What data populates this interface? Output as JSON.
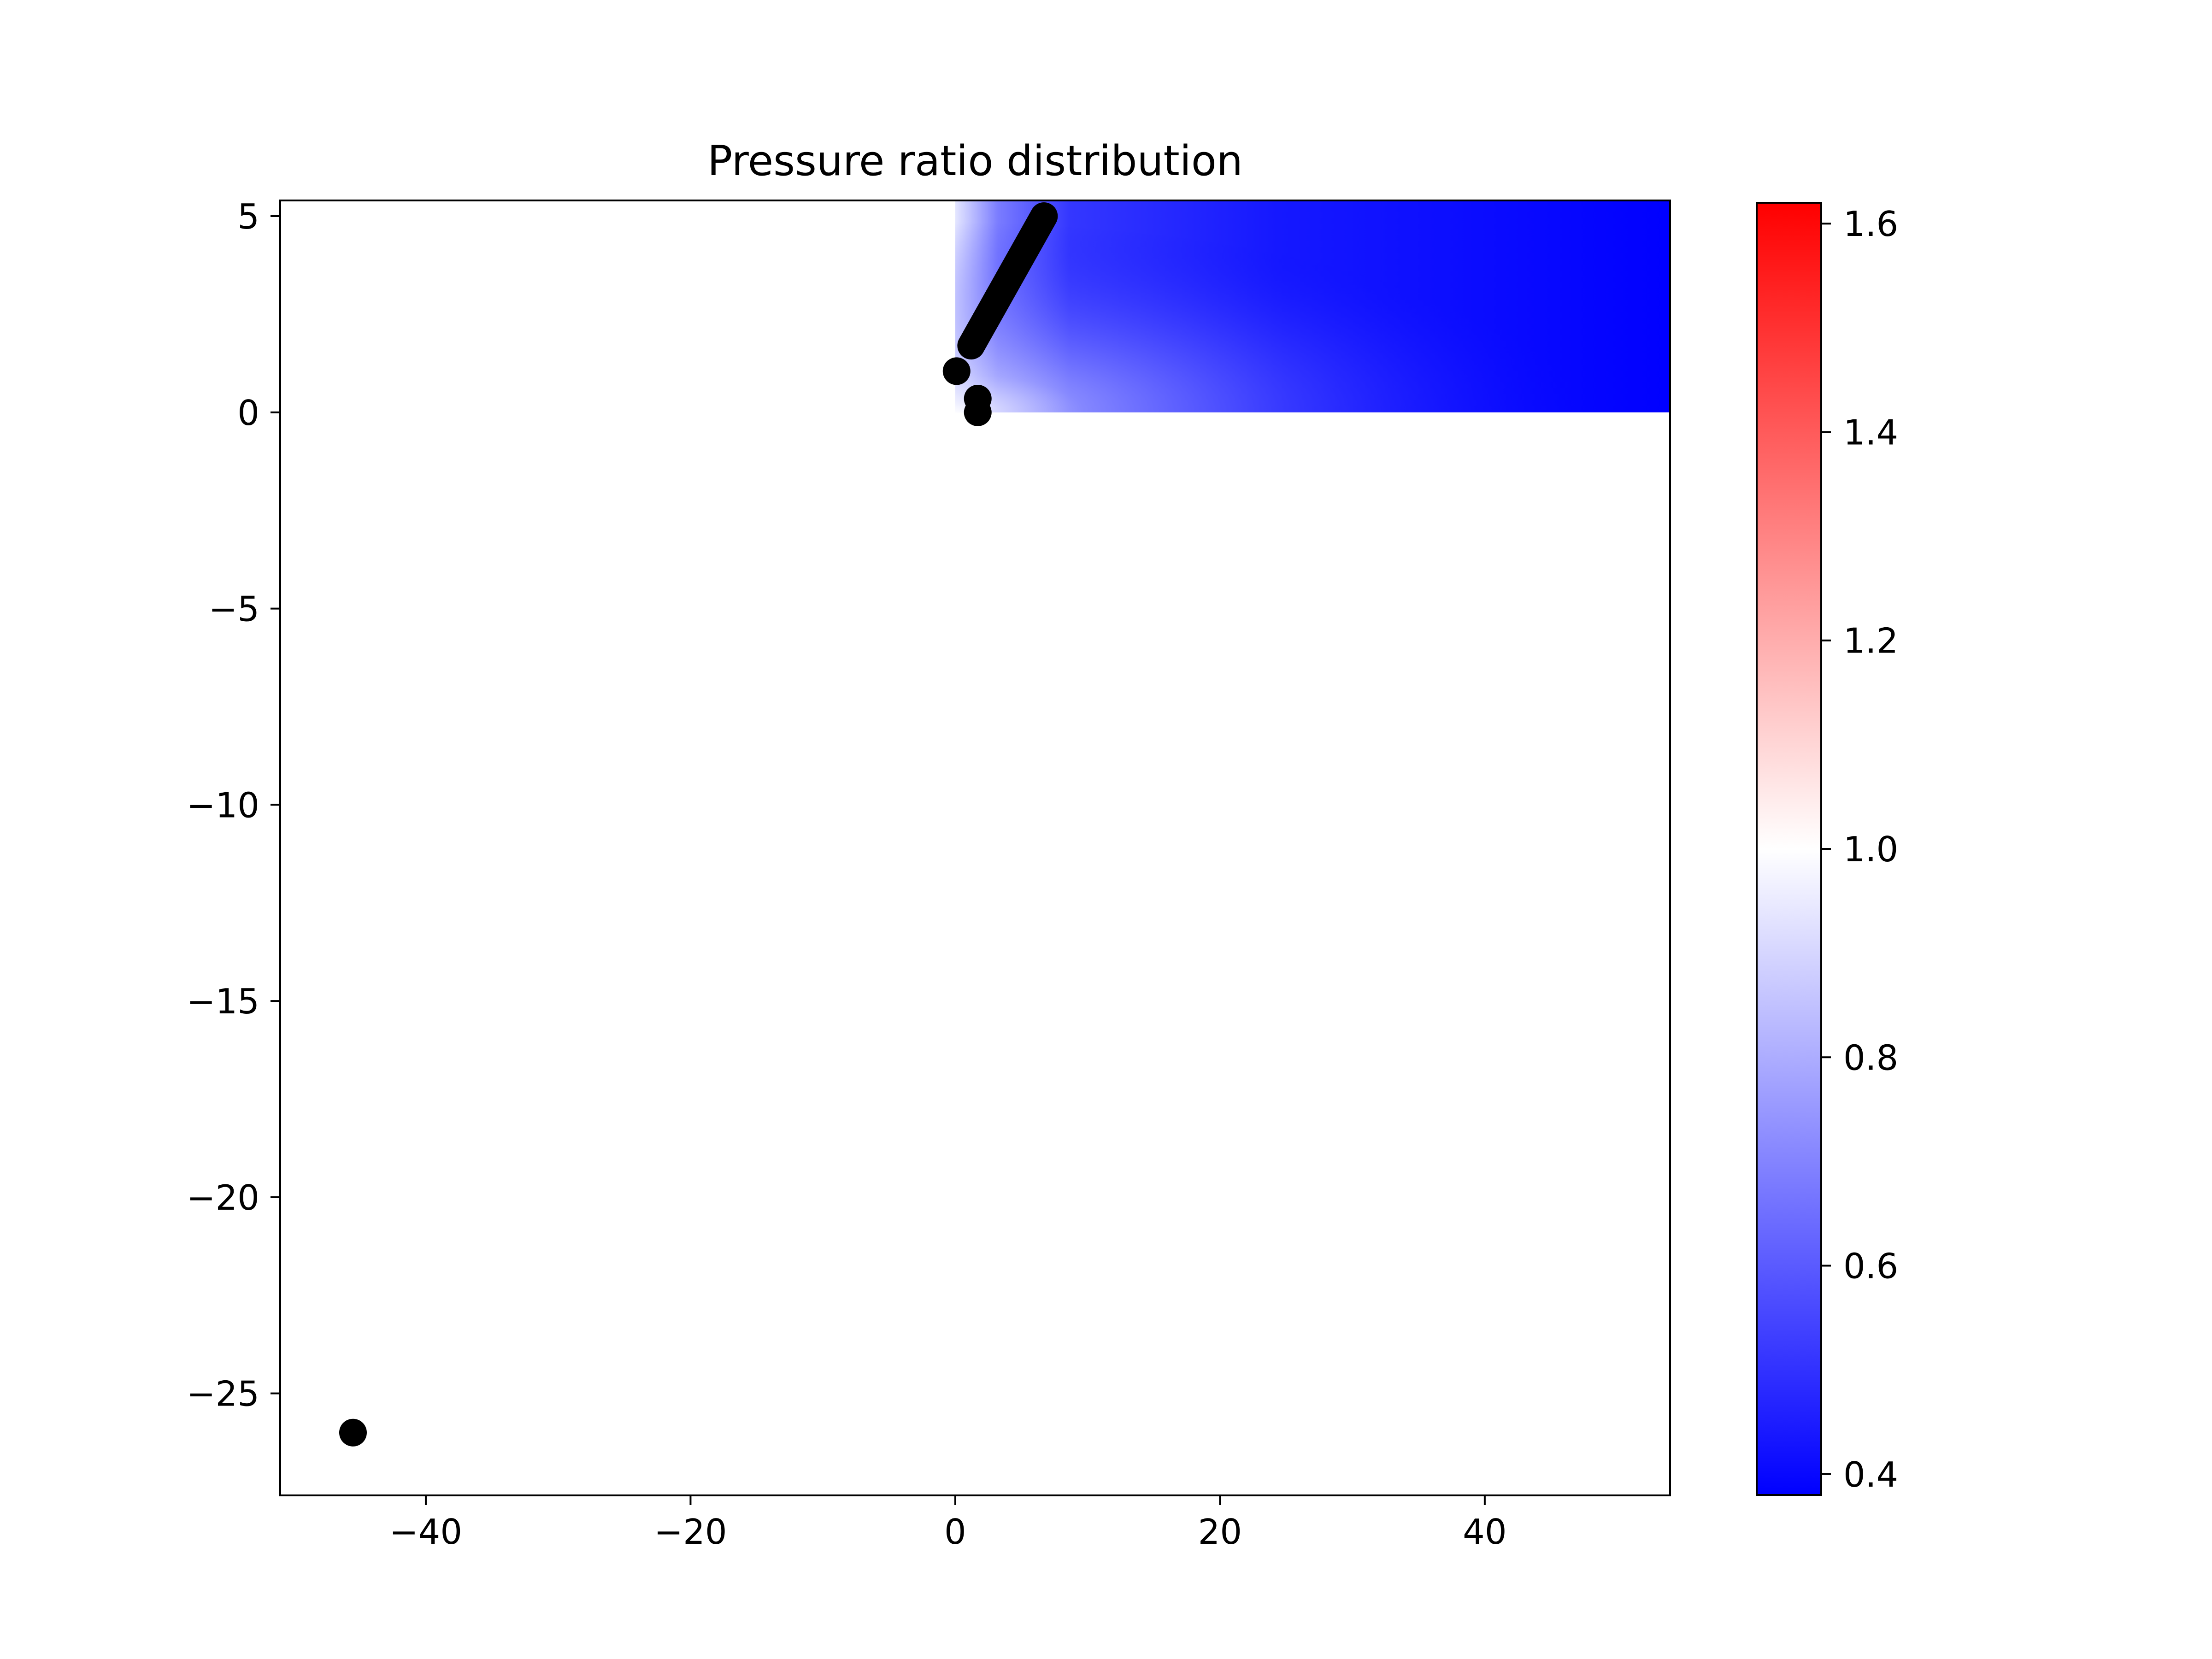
{
  "chart_data": {
    "type": "heatmap",
    "title": "Pressure ratio distribution",
    "xlabel": "",
    "ylabel": "",
    "xlim": [
      -51,
      54
    ],
    "ylim": [
      -27.6,
      5.4
    ],
    "grid": false,
    "xticks": [
      -40,
      -20,
      0,
      20,
      40
    ],
    "xtick_labels": [
      "−40",
      "−20",
      "0",
      "20",
      "40"
    ],
    "yticks": [
      5,
      0,
      -5,
      -10,
      -15,
      -20,
      -25
    ],
    "ytick_labels": [
      "5",
      "0",
      "−5",
      "−10",
      "−15",
      "−20",
      "−25"
    ],
    "field": {
      "description": "pressure ratio field",
      "x_range": [
        0,
        54
      ],
      "y_range": [
        0,
        5.4
      ],
      "value_near_origin": 1.0,
      "value_far_field": 0.4
    },
    "markers": {
      "color": "#000000",
      "points": [
        {
          "x": 0.1,
          "y": 1.05
        },
        {
          "x": 1.7,
          "y": 0.35
        },
        {
          "x": 1.7,
          "y": 0.0
        },
        {
          "x": -45.5,
          "y": -26.0
        }
      ],
      "line_segment": {
        "x": [
          1.2,
          6.7
        ],
        "y": [
          1.7,
          5.0
        ]
      }
    },
    "colorbar": {
      "range": [
        0.38,
        1.62
      ],
      "ticks": [
        1.6,
        1.4,
        1.2,
        1.0,
        0.8,
        0.6,
        0.4
      ],
      "tick_labels": [
        "1.6",
        "1.4",
        "1.2",
        "1.0",
        "0.8",
        "0.6",
        "0.4"
      ],
      "colors": {
        "low": "#0000ff",
        "mid": "#ffffff",
        "high": "#ff0000"
      }
    }
  }
}
